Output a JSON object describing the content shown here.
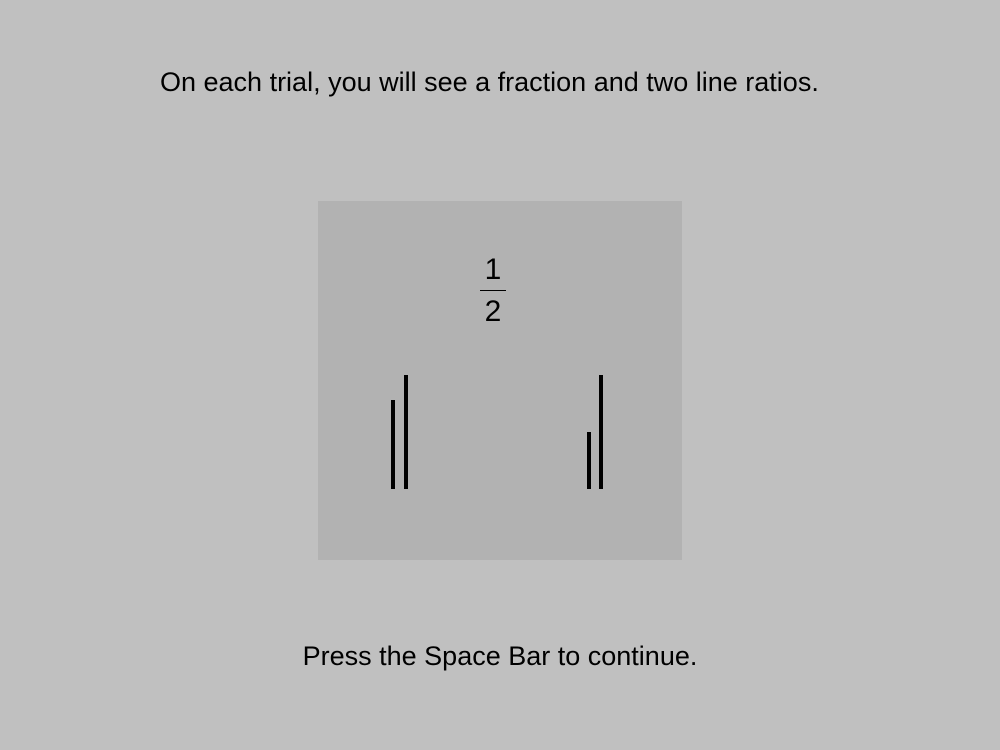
{
  "instructions": {
    "text": "On each trial, you will see a fraction and two line ratios."
  },
  "example": {
    "fraction": {
      "numerator": "1",
      "denominator": "2"
    },
    "line_ratios": [
      {
        "name": "left",
        "short_length": 0.78,
        "long_length": 1.0
      },
      {
        "name": "right",
        "short_length": 0.5,
        "long_length": 1.0
      }
    ]
  },
  "footer": {
    "text": "Press the Space Bar to continue."
  },
  "colors": {
    "background": "#c0c0c0",
    "panel": "#b2b2b2",
    "ink": "#000000"
  }
}
